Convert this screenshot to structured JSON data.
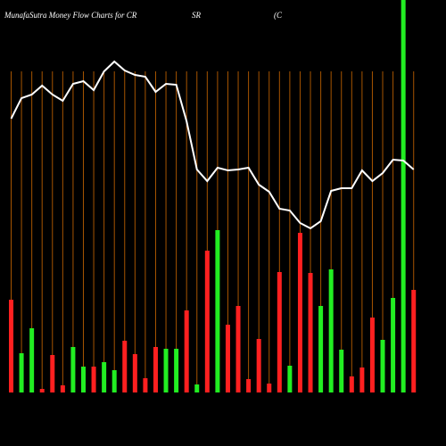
{
  "chart_data": {
    "type": "bar-line",
    "title": "MunafaSutra  Money Flow  Charts for CR",
    "title_2": "SR",
    "title_3": "(C",
    "ylim": [
      0,
      440
    ],
    "grid": true,
    "grid_color": "#a65400",
    "background": "#000000",
    "series": [
      {
        "type": "bar",
        "values": [
          104,
          44,
          72,
          4,
          42,
          8,
          51,
          29,
          29,
          34,
          25,
          58,
          43,
          16,
          51,
          49,
          49,
          92,
          9,
          159,
          182,
          76,
          97,
          15,
          60,
          10,
          135,
          30,
          179,
          134,
          97,
          138,
          48,
          18,
          28,
          84,
          59,
          106,
          440,
          115
        ],
        "colors": [
          "#ff2020",
          "#22ee22",
          "#22ee22",
          "#ff2020",
          "#ff2020",
          "#ff2020",
          "#22ee22",
          "#22ee22",
          "#ff2020",
          "#22ee22",
          "#22ee22",
          "#ff2020",
          "#ff2020",
          "#ff2020",
          "#ff2020",
          "#22ee22",
          "#22ee22",
          "#ff2020",
          "#22ee22",
          "#ff2020",
          "#22ee22",
          "#ff2020",
          "#ff2020",
          "#ff2020",
          "#ff2020",
          "#ff2020",
          "#ff2020",
          "#22ee22",
          "#ff2020",
          "#ff2020",
          "#22ee22",
          "#22ee22",
          "#22ee22",
          "#ff2020",
          "#ff2020",
          "#ff2020",
          "#22ee22",
          "#22ee22",
          "#22ee22",
          "#ff2020"
        ]
      },
      {
        "type": "line",
        "color": "#ffffff",
        "values": [
          307,
          330,
          334,
          344,
          334,
          327,
          346,
          349,
          339,
          360,
          371,
          361,
          356,
          354,
          337,
          346,
          345,
          304,
          250,
          237,
          252,
          249,
          250,
          252,
          233,
          225,
          206,
          204,
          190,
          184,
          192,
          226,
          229,
          229,
          249,
          237,
          246,
          261,
          260,
          250
        ]
      }
    ]
  }
}
